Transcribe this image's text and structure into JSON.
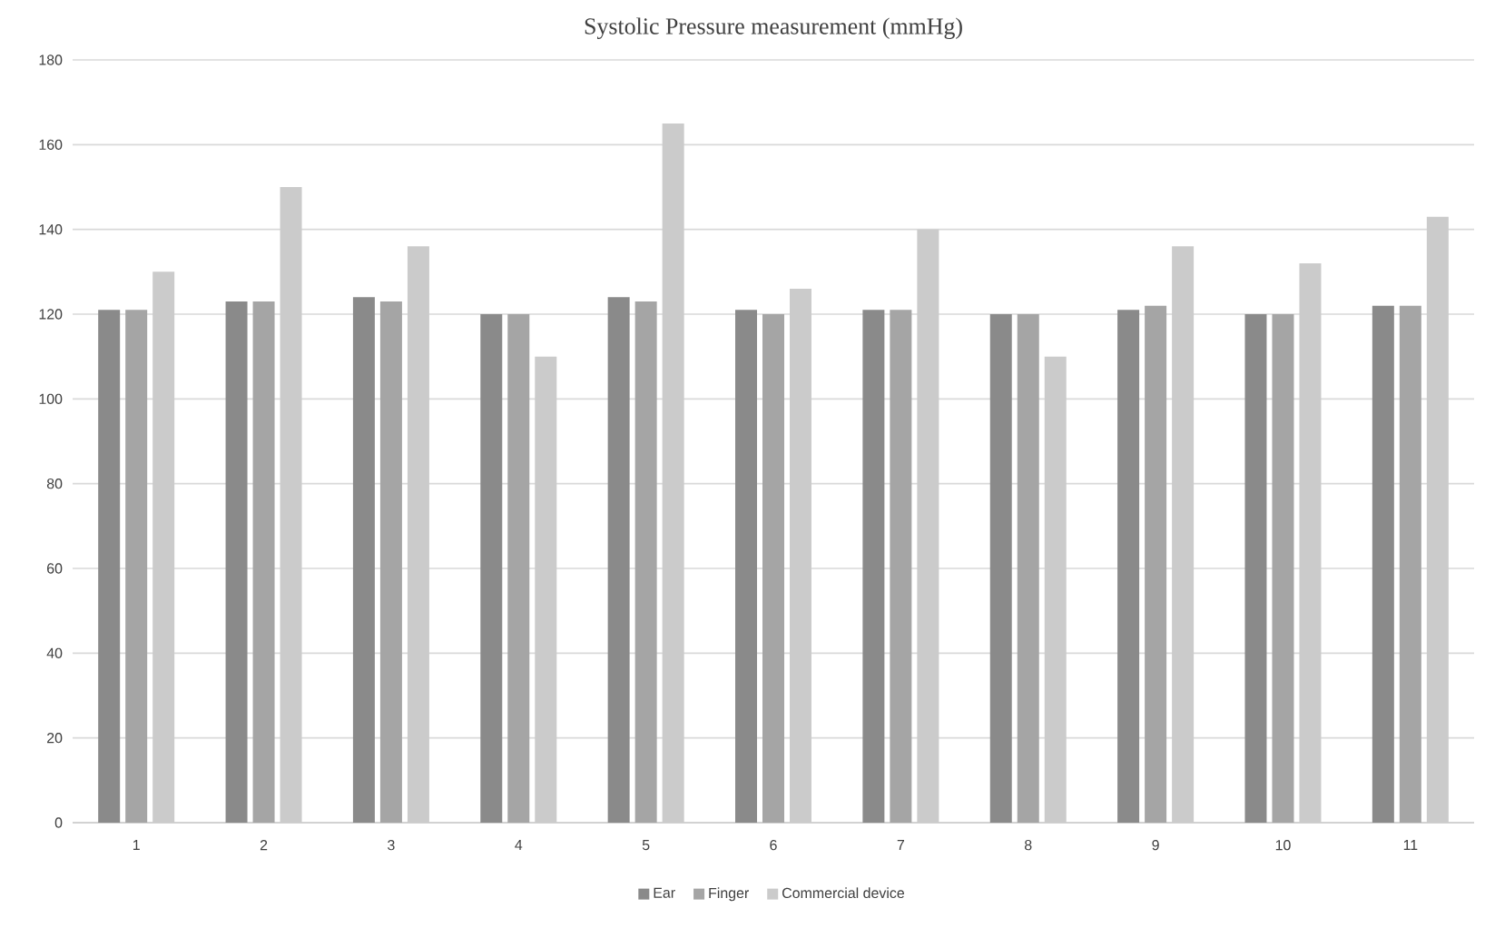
{
  "chart_data": {
    "type": "bar",
    "title": "Systolic Pressure measurement (mmHg)",
    "categories": [
      "1",
      "2",
      "3",
      "4",
      "5",
      "6",
      "7",
      "8",
      "9",
      "10",
      "11"
    ],
    "series": [
      {
        "name": "Ear",
        "color": "#8a8a8a",
        "values": [
          121,
          123,
          124,
          120,
          124,
          121,
          121,
          120,
          121,
          120,
          122
        ]
      },
      {
        "name": "Finger",
        "color": "#a5a5a5",
        "values": [
          121,
          123,
          123,
          120,
          123,
          120,
          121,
          120,
          122,
          120,
          122
        ]
      },
      {
        "name": "Commercial device",
        "color": "#cbcbcb",
        "values": [
          130,
          150,
          136,
          110,
          165,
          126,
          140,
          110,
          136,
          132,
          143
        ]
      }
    ],
    "ylim": [
      0,
      180
    ],
    "yticks": [
      0,
      20,
      40,
      60,
      80,
      100,
      120,
      140,
      160,
      180
    ],
    "grid": "y",
    "legend": "bottom"
  }
}
